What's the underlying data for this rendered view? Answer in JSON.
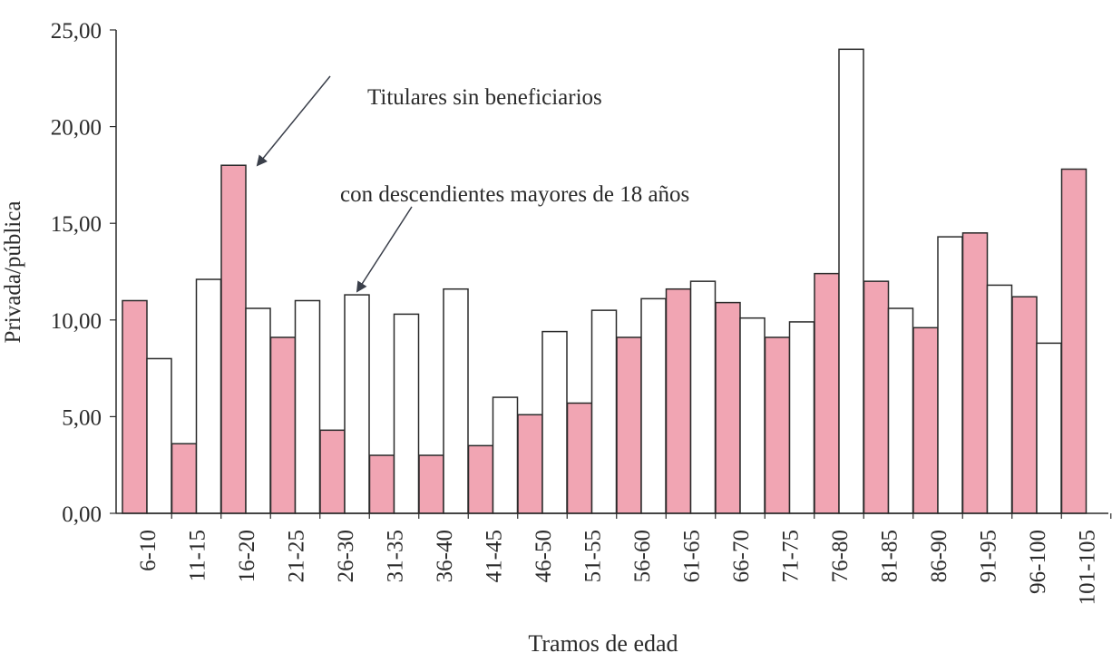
{
  "chart_data": {
    "type": "bar",
    "title": "",
    "xlabel": "Tramos de edad",
    "ylabel": "Privada/pública",
    "ylim": [
      0,
      25
    ],
    "yticks": [
      "0,00",
      "5,00",
      "10,00",
      "15,00",
      "20,00",
      "25,00"
    ],
    "grid": false,
    "categories": [
      "6-10",
      "11-15",
      "16-20",
      "21-25",
      "26-30",
      "31-35",
      "36-40",
      "41-45",
      "46-50",
      "51-55",
      "56-60",
      "61-65",
      "66-70",
      "71-75",
      "76-80",
      "81-85",
      "86-90",
      "91-95",
      "96-100",
      "101-105"
    ],
    "series": [
      {
        "color": "#f1a5b3",
        "values": [
          11.0,
          3.6,
          18.0,
          9.1,
          4.3,
          3.0,
          3.0,
          3.5,
          5.1,
          5.7,
          9.1,
          11.6,
          10.9,
          9.1,
          12.4,
          12.0,
          9.6,
          14.5,
          11.2,
          17.8
        ]
      },
      {
        "color": "#ffffff",
        "values": [
          8.0,
          12.1,
          10.6,
          11.0,
          11.3,
          10.3,
          11.6,
          6.0,
          9.4,
          10.5,
          11.1,
          12.0,
          10.1,
          9.9,
          24.0,
          10.6,
          14.3,
          11.8,
          8.8,
          null
        ]
      }
    ],
    "annotations": [
      {
        "text": "Titulares sin beneficiarios"
      },
      {
        "text": "con descendientes mayores de 18 años"
      }
    ]
  }
}
